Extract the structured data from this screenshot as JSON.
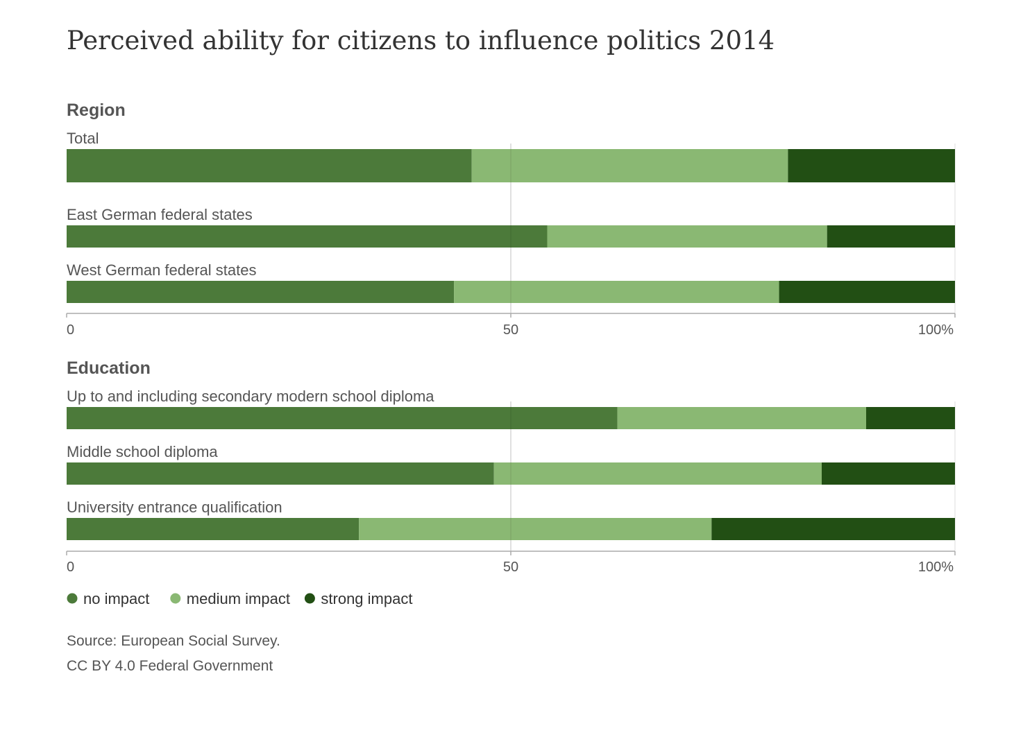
{
  "chart_data": {
    "type": "bar",
    "orientation": "horizontal",
    "stacked": true,
    "title": "Perceived ability for citizens to influence politics 2014",
    "xlim": [
      0,
      100
    ],
    "tick_labels": [
      "0",
      "50",
      "100%"
    ],
    "grid": true,
    "legend_position": "bottom-left",
    "series": [
      {
        "name": "no impact",
        "color": "#4c7a3a"
      },
      {
        "name": "medium impact",
        "color": "#8ab873"
      },
      {
        "name": "strong impact",
        "color": "#224f14"
      }
    ],
    "groups": [
      {
        "name": "Region",
        "categories": [
          {
            "label": "Total",
            "values": [
              45.6,
              35.6,
              18.8
            ]
          },
          {
            "label": "East German federal states",
            "values": [
              54.1,
              31.5,
              14.4
            ]
          },
          {
            "label": "West German federal states",
            "values": [
              43.6,
              36.6,
              19.8
            ]
          }
        ]
      },
      {
        "name": "Education",
        "categories": [
          {
            "label": "Up to and including secondary modern school diploma",
            "values": [
              62.0,
              28.0,
              10.0
            ]
          },
          {
            "label": "Middle school diploma",
            "values": [
              48.1,
              36.9,
              15.0
            ]
          },
          {
            "label": "University entrance qualification",
            "values": [
              32.9,
              39.7,
              27.4
            ]
          }
        ]
      }
    ]
  },
  "source": {
    "line1": "Source: European Social Survey.",
    "line2": "CC BY 4.0 Federal Government"
  }
}
